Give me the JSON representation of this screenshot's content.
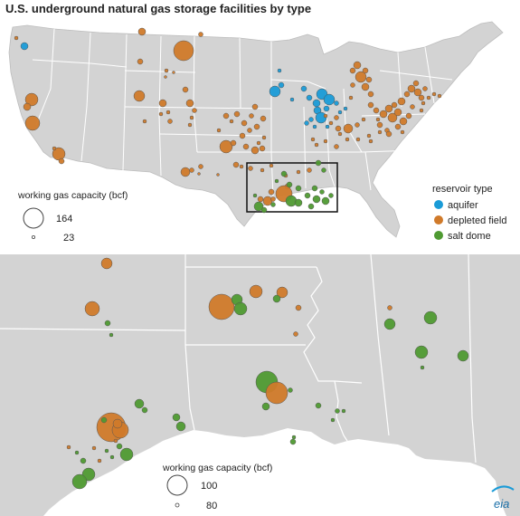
{
  "title": "U.S. underground natural gas storage facilities by type",
  "reservoir_legend": {
    "heading": "reservoir type",
    "items": [
      {
        "label": "aquifer",
        "color": "#1a9bd7"
      },
      {
        "label": "depleted field",
        "color": "#d07a2a"
      },
      {
        "label": "salt dome",
        "color": "#4f9a32"
      }
    ]
  },
  "size_legend_top": {
    "heading": "working gas capacity (bcf)",
    "large": "164",
    "small": "23"
  },
  "size_legend_bottom": {
    "heading": "working gas capacity (bcf)",
    "large": "100",
    "small": "80"
  },
  "colors": {
    "land": "#d3d3d3",
    "border": "#ffffff",
    "inset_box": "#111111",
    "bubble_outline": "#555555"
  },
  "logo": {
    "text": "eia"
  }
}
